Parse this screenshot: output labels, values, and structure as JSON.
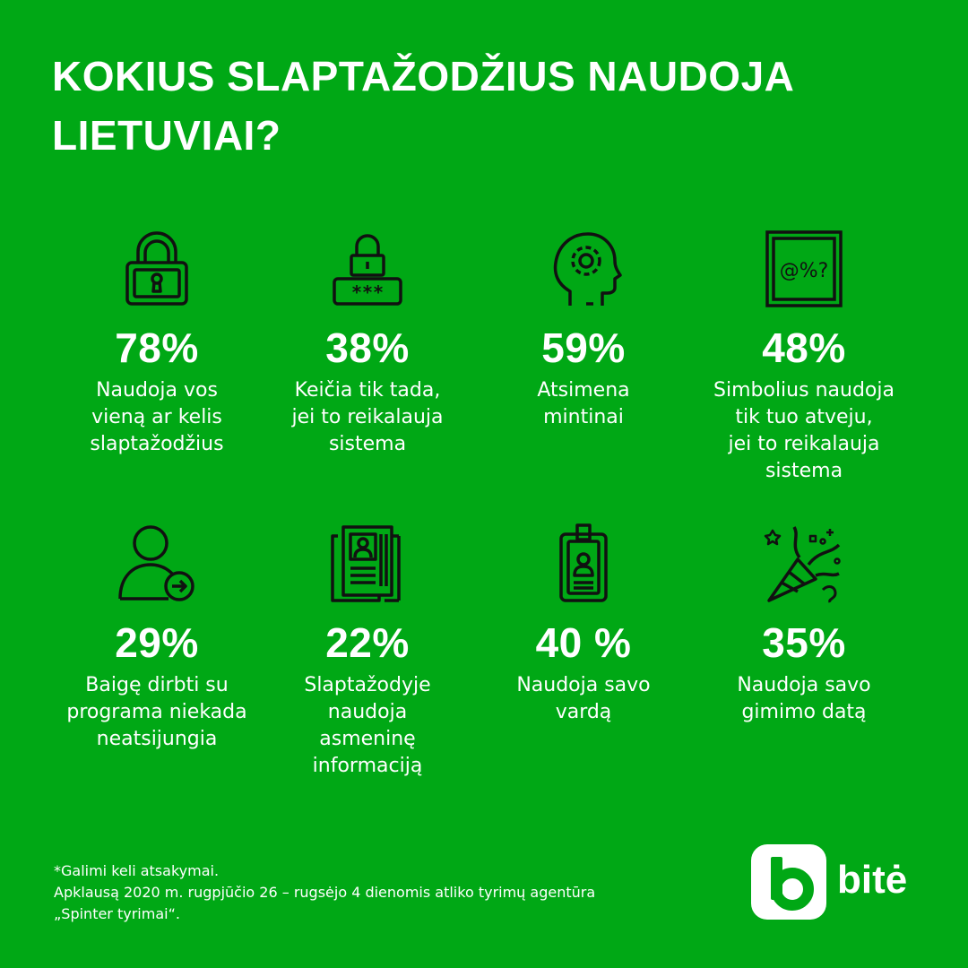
{
  "title": "KOKIUS SLAPTAŽODŽIUS NAUDOJA\nLIETUVIAI?",
  "stats": [
    {
      "icon": "padlock-icon",
      "value": "78%",
      "text": "Naudoja vos\nvieną ar kelis\nslaptažodžius"
    },
    {
      "icon": "password-lock-icon",
      "value": "38%",
      "text": "Keičia tik tada,\njei to reikalauja\nsistema"
    },
    {
      "icon": "head-gear-icon",
      "value": "59%",
      "text": "Atsimena\nmintinai"
    },
    {
      "icon": "symbols-box-icon",
      "value": "48%",
      "text": "Simbolius naudoja\ntik tuo atveju,\njei to reikalauja\nsistema"
    },
    {
      "icon": "user-logout-icon",
      "value": "29%",
      "text": "Baigę dirbti su\nprograma niekada\nneatsijungia"
    },
    {
      "icon": "id-documents-icon",
      "value": "22%",
      "text": "Slaptažodyje\nnaudoja\nasmeninę\ninformaciją"
    },
    {
      "icon": "badge-icon",
      "value": "40 %",
      "text": "Naudoja savo\nvardą"
    },
    {
      "icon": "party-popper-icon",
      "value": "35%",
      "text": "Naudoja savo\ngimimo datą"
    }
  ],
  "icon_labels": {
    "symbols_box": "@%?",
    "password_stars": "***"
  },
  "footnote": "*Galimi keli atsakymai.\nApklausą 2020 m. rugpjūčio 26 – rugsėjo 4 dienomis atliko tyrimų agentūra\n„Spinter tyrimai“.",
  "brand": {
    "name": "bitė",
    "background": "#00a815",
    "foreground": "#ffffff"
  }
}
